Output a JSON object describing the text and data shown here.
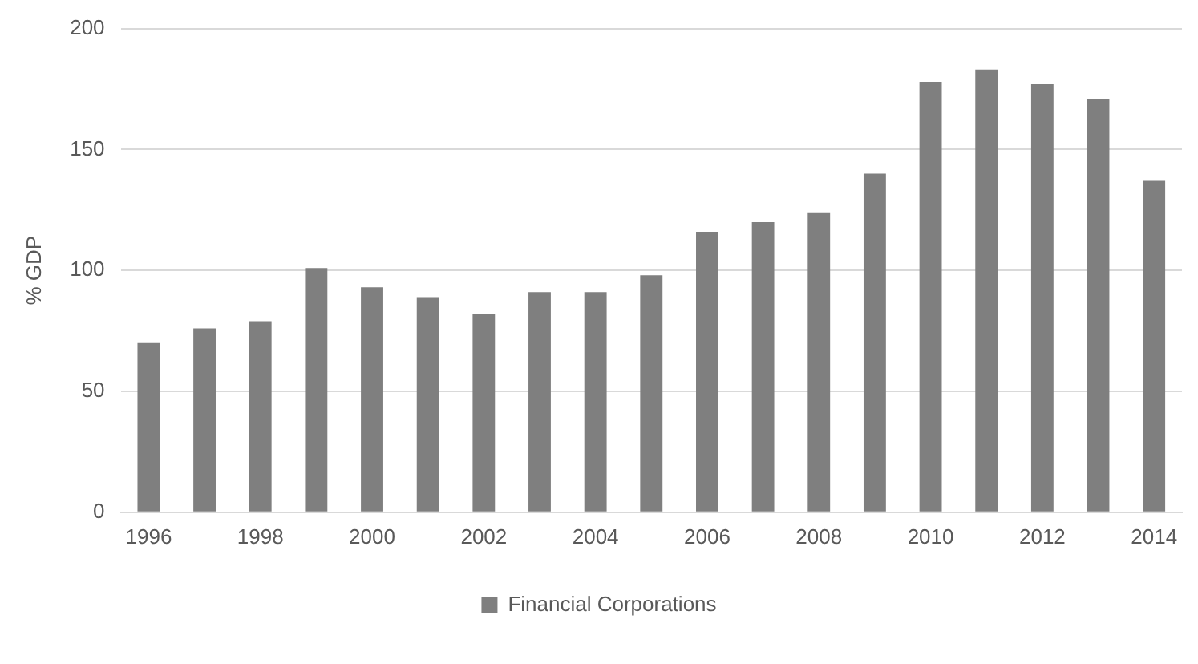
{
  "chart_data": {
    "type": "bar",
    "ylabel": "% GDP",
    "categories": [
      "1996",
      null,
      "1998",
      null,
      "2000",
      null,
      "2002",
      null,
      "2004",
      null,
      "2006",
      null,
      "2008",
      null,
      "2010",
      null,
      "2012",
      null,
      "2014"
    ],
    "series": [
      {
        "name": "Financial Corporations",
        "color": "#7f7f7f",
        "values": [
          70,
          76,
          79,
          101,
          93,
          89,
          82,
          91,
          91,
          98,
          116,
          120,
          124,
          140,
          178,
          183,
          177,
          171,
          137
        ]
      }
    ],
    "ylim": [
      0,
      200
    ],
    "yticks": [
      0,
      50,
      100,
      150,
      200
    ],
    "grid": "y",
    "legend": "bottom"
  }
}
